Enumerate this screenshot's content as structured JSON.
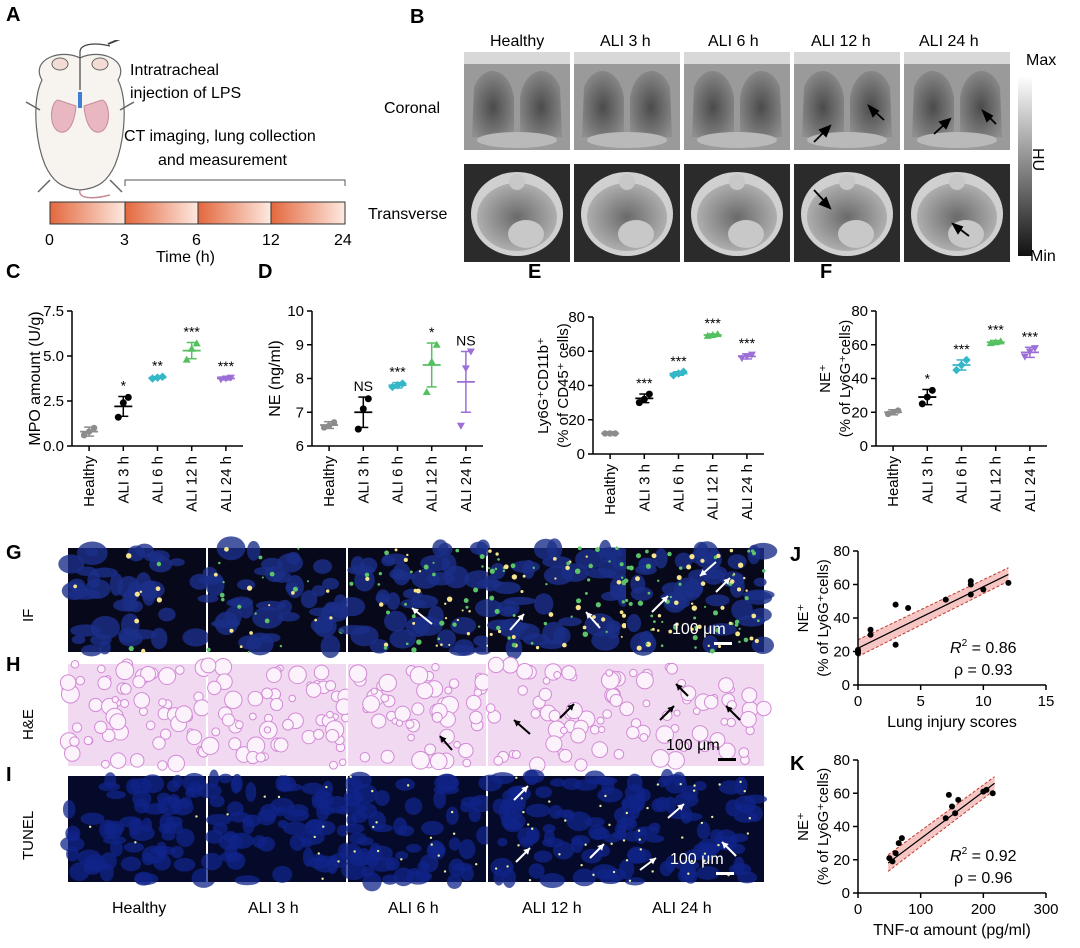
{
  "panels": {
    "A": {
      "letter": "A",
      "step1": [
        "Intratracheal",
        "injection of LPS"
      ],
      "step2": [
        "CT imaging, lung collection",
        "and measurement"
      ],
      "timeline_ticks": [
        "0",
        "3",
        "6",
        "12",
        "24"
      ],
      "timeline_label": "Time (h)"
    },
    "B": {
      "letter": "B",
      "columns": [
        "Healthy",
        "ALI 3 h",
        "ALI 6 h",
        "ALI 12 h",
        "ALI 24 h"
      ],
      "rows": [
        "Coronal",
        "Transverse"
      ],
      "colorbar_max": "Max",
      "colorbar_min": "Min",
      "colorbar_unit": "HU"
    },
    "G": {
      "letter": "G",
      "row_label": "IF",
      "scale": "100 μm"
    },
    "H": {
      "letter": "H",
      "row_label": "H&E",
      "scale": "100 μm"
    },
    "I": {
      "letter": "I",
      "row_label": "TUNEL",
      "scale": "100 μm"
    },
    "histology_columns": [
      "Healthy",
      "ALI 3 h",
      "ALI 6 h",
      "ALI 12 h",
      "ALI 24 h"
    ]
  },
  "chart_data": [
    {
      "id": "C",
      "letter": "C",
      "type": "scatter",
      "categories": [
        "Healthy",
        "ALI 3 h",
        "ALI 6 h",
        "ALI 12 h",
        "ALI 24 h"
      ],
      "ylabel": "MPO amount (U/g)",
      "ylim": [
        0,
        7.5
      ],
      "yticks": [
        "0.0",
        "2.5",
        "5.0",
        "7.5"
      ],
      "means": [
        0.8,
        2.2,
        3.8,
        5.3,
        3.75
      ],
      "sds": [
        0.25,
        0.55,
        0.05,
        0.45,
        0.08
      ],
      "points": [
        [
          0.6,
          0.8,
          1.0
        ],
        [
          1.6,
          2.4,
          2.7
        ],
        [
          3.75,
          3.8,
          3.85
        ],
        [
          4.8,
          5.4,
          5.7
        ],
        [
          3.7,
          3.75,
          3.8
        ]
      ],
      "signif": [
        "",
        "*",
        "**",
        "***",
        "***"
      ],
      "colors": [
        "#8c8c8c",
        "#000000",
        "#35b7c8",
        "#55c060",
        "#9b6fd6"
      ]
    },
    {
      "id": "D",
      "letter": "D",
      "type": "scatter",
      "categories": [
        "Healthy",
        "ALI 3 h",
        "ALI 6 h",
        "ALI 12 h",
        "ALI 24 h"
      ],
      "ylabel": "NE  (ng/ml)",
      "ylim": [
        6,
        10
      ],
      "yticks": [
        "6",
        "7",
        "8",
        "9",
        "10"
      ],
      "means": [
        6.62,
        7.0,
        7.8,
        8.4,
        7.9
      ],
      "sds": [
        0.1,
        0.45,
        0.08,
        0.65,
        0.9
      ],
      "points": [
        [
          6.55,
          6.6,
          6.7
        ],
        [
          6.5,
          7.1,
          7.4
        ],
        [
          7.75,
          7.8,
          7.85
        ],
        [
          7.6,
          8.5,
          9.0
        ],
        [
          6.6,
          8.3,
          8.8
        ]
      ],
      "signif": [
        "",
        "NS",
        "***",
        "*",
        "NS"
      ],
      "colors": [
        "#8c8c8c",
        "#000000",
        "#35b7c8",
        "#55c060",
        "#9b6fd6"
      ]
    },
    {
      "id": "E",
      "letter": "E",
      "type": "scatter",
      "categories": [
        "Healthy",
        "ALI 3 h",
        "ALI 6 h",
        "ALI 12 h",
        "ALI 24 h"
      ],
      "ylabel_lines": [
        "Ly6G⁺CD11b⁺",
        "(% of CD45⁺ cells)"
      ],
      "ylim": [
        0,
        80
      ],
      "yticks": [
        "0",
        "20",
        "40",
        "60",
        "80"
      ],
      "means": [
        12,
        32.5,
        47,
        69.5,
        57
      ],
      "sds": [
        0.4,
        2.5,
        1.0,
        0.6,
        1.5
      ],
      "points": [
        [
          12,
          12,
          12
        ],
        [
          30,
          32,
          35
        ],
        [
          46,
          47,
          48
        ],
        [
          69,
          69.5,
          70
        ],
        [
          56,
          57,
          58
        ]
      ],
      "signif": [
        "",
        "***",
        "***",
        "***",
        "***"
      ],
      "colors": [
        "#8c8c8c",
        "#000000",
        "#35b7c8",
        "#55c060",
        "#9b6fd6"
      ]
    },
    {
      "id": "F",
      "letter": "F",
      "type": "scatter",
      "categories": [
        "Healthy",
        "ALI 3 h",
        "ALI 6 h",
        "ALI 12 h",
        "ALI 24 h"
      ],
      "ylabel_lines": [
        "NE⁺",
        "(% of Ly6G⁺cells)"
      ],
      "ylim": [
        0,
        80
      ],
      "yticks": [
        "0",
        "20",
        "40",
        "60",
        "80"
      ],
      "means": [
        20,
        29,
        48,
        61.5,
        55.5
      ],
      "sds": [
        1.5,
        4.5,
        3.0,
        1.0,
        3.0
      ],
      "points": [
        [
          19,
          20,
          21
        ],
        [
          25,
          29,
          33
        ],
        [
          45,
          48,
          51
        ],
        [
          61,
          61.5,
          62
        ],
        [
          53,
          56,
          58
        ]
      ],
      "signif": [
        "",
        "*",
        "***",
        "***",
        "***"
      ],
      "colors": [
        "#8c8c8c",
        "#000000",
        "#35b7c8",
        "#55c060",
        "#9b6fd6"
      ]
    },
    {
      "id": "J",
      "letter": "J",
      "type": "scatter",
      "xlabel": "Lung injury scores",
      "ylabel_lines": [
        "NE⁺",
        "(% of Ly6G⁺cells)"
      ],
      "xlim": [
        0,
        15
      ],
      "ylim": [
        0,
        80
      ],
      "xticks": [
        "0",
        "5",
        "10",
        "15"
      ],
      "yticks": [
        "0",
        "20",
        "40",
        "60",
        "80"
      ],
      "x": [
        0,
        0,
        0,
        1,
        1,
        3,
        3,
        4,
        7,
        9,
        9,
        9,
        10,
        12
      ],
      "y": [
        19,
        20,
        21,
        30,
        33,
        24,
        48,
        46,
        51,
        54,
        60,
        62,
        57,
        61
      ],
      "fit": [
        [
          0,
          22
        ],
        [
          12,
          66
        ]
      ],
      "r2_prefix": "R",
      "r2_suffix": " = 0.86",
      "rho": "ρ = 0.93"
    },
    {
      "id": "K",
      "letter": "K",
      "type": "scatter",
      "xlabel": "TNF-α amount (pg/ml)",
      "ylabel_lines": [
        "NE⁺",
        "(% of Ly6G⁺cells)"
      ],
      "xlim": [
        0,
        300
      ],
      "ylim": [
        0,
        80
      ],
      "xticks": [
        "0",
        "100",
        "200",
        "300"
      ],
      "yticks": [
        "0",
        "20",
        "40",
        "60",
        "80"
      ],
      "x": [
        50,
        55,
        60,
        65,
        70,
        140,
        145,
        150,
        155,
        160,
        200,
        205,
        215
      ],
      "y": [
        21,
        19,
        24,
        30,
        33,
        45,
        59,
        52,
        48,
        56,
        61,
        62,
        60
      ],
      "fit": [
        [
          48,
          18
        ],
        [
          218,
          66
        ]
      ],
      "r2_prefix": "R",
      "r2_suffix": " = 0.92",
      "rho": "ρ = 0.96"
    }
  ]
}
